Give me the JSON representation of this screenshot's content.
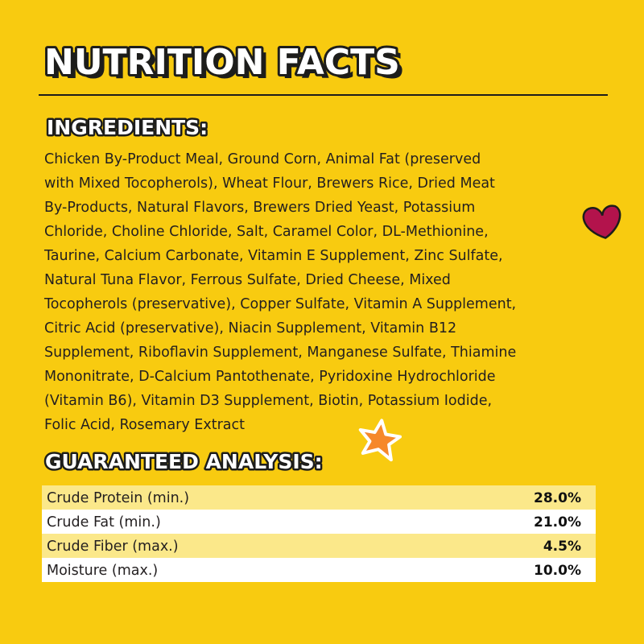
{
  "header": {
    "title": "NUTRITION FACTS"
  },
  "ingredients": {
    "heading": "INGREDIENTS:",
    "lines": [
      "Chicken By-Product Meal, Ground Corn, Animal Fat (preserved",
      "with Mixed Tocopherols), Wheat Flour, Brewers Rice, Dried Meat",
      "By-Products, Natural Flavors, Brewers Dried Yeast, Potassium",
      "Chloride, Choline Chloride, Salt, Caramel Color, DL-Methionine,",
      "Taurine, Calcium Carbonate, Vitamin E Supplement, Zinc Sulfate,",
      "Natural Tuna Flavor, Ferrous Sulfate, Dried Cheese, Mixed",
      "Tocopherols (preservative), Copper Sulfate, Vitamin A Supplement,",
      "Citric Acid (preservative), Niacin Supplement, Vitamin B12",
      "Supplement, Riboflavin Supplement, Manganese Sulfate, Thiamine",
      "Mononitrate, D-Calcium Pantothenate, Pyridoxine Hydrochloride",
      "(Vitamin B6), Vitamin D3 Supplement, Biotin, Potassium Iodide,",
      "Folic Acid, Rosemary Extract"
    ]
  },
  "analysis": {
    "heading": "GUARANTEED ANALYSIS:",
    "rows": [
      [
        "Crude Protein (min.)",
        "28.0%"
      ],
      [
        "Crude Fat (min.)",
        "21.0%"
      ],
      [
        "Crude Fiber (max.)",
        "4.5%"
      ],
      [
        "Moisture (max.)",
        "10.0%"
      ]
    ]
  }
}
